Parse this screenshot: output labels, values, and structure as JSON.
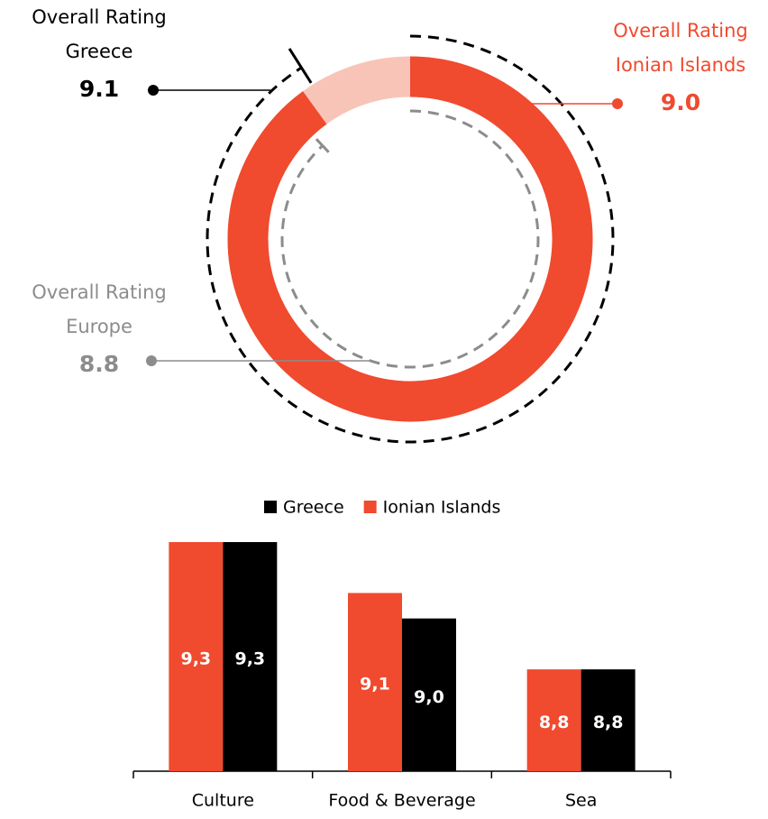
{
  "chart_data": [
    {
      "type": "gauge",
      "rlim": [
        0,
        10
      ],
      "series": [
        {
          "label": "Overall Rating",
          "name": "Greece",
          "values": [
            9.1
          ],
          "value_labels": [
            "9.1"
          ],
          "color": "#000000"
        },
        {
          "label": "Overall Rating",
          "name": "Ionian Islands",
          "values": [
            9.0
          ],
          "value_labels": [
            "9.0"
          ],
          "color": "#f04a2f"
        },
        {
          "label": "Overall Rating",
          "name": "Europe",
          "values": [
            8.8
          ],
          "value_labels": [
            "8.8"
          ],
          "color": "#8c8c8c"
        }
      ]
    },
    {
      "type": "bar",
      "categories": [
        "Culture",
        "Food & Beverage",
        "Sea"
      ],
      "ylim": [
        8.4,
        9.3
      ],
      "series": [
        {
          "name": "Ionian Islands",
          "color": "#f04a2f",
          "values": [
            9.3,
            9.1,
            8.8
          ],
          "value_labels": [
            "9,3",
            "9,1",
            "8,8"
          ]
        },
        {
          "name": "Greece",
          "color": "#000000",
          "values": [
            9.3,
            9.0,
            8.8
          ],
          "value_labels": [
            "9,3",
            "9,0",
            "8,8"
          ]
        }
      ]
    }
  ]
}
